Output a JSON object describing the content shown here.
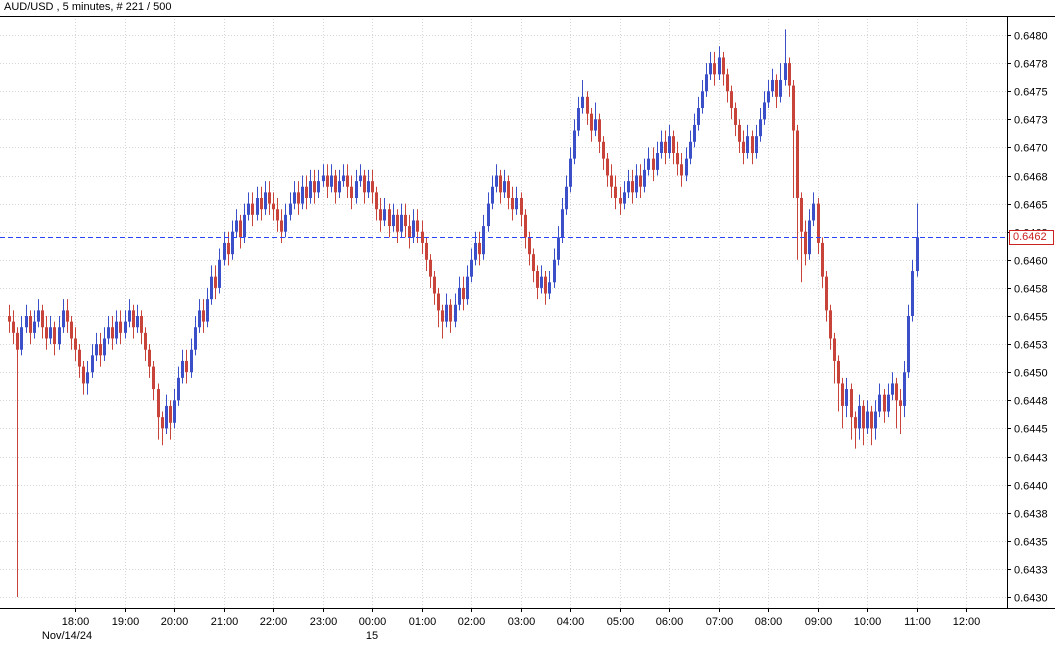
{
  "header": {
    "title": "AUD/USD , 5 minutes, # 221 / 500"
  },
  "chart_data": {
    "type": "candlestick",
    "title": "AUD/USD , 5 minutes, # 221 / 500",
    "symbol": "AUD/USD",
    "timeframe": "5 minutes",
    "bar_counter": "# 221 / 500",
    "ylim": [
      0.643,
      0.648
    ],
    "price_labels": [
      "0.6480",
      "0.6478",
      "0.6475",
      "0.6473",
      "0.6470",
      "0.6468",
      "0.6465",
      "0.6463",
      "0.6460",
      "0.6458",
      "0.6455",
      "0.6453",
      "0.6450",
      "0.6448",
      "0.6445",
      "0.6443",
      "0.6440",
      "0.6438",
      "0.6435",
      "0.6433",
      "0.6430"
    ],
    "time_labels": [
      "18:00",
      "19:00",
      "20:00",
      "21:00",
      "22:00",
      "23:00",
      "00:00",
      "01:00",
      "02:00",
      "03:00",
      "04:00",
      "05:00",
      "06:00",
      "07:00",
      "08:00",
      "09:00",
      "10:00",
      "11:00",
      "12:00"
    ],
    "date_label": "Nov/14/24",
    "midnight_day_label": "15",
    "midnight_under": "00:00",
    "current_price": {
      "value": 0.6462,
      "label": "0.6462"
    },
    "start_time": "16:40",
    "interval_minutes": 5,
    "grid": true,
    "colors": {
      "up": "#3a4fc8",
      "down": "#c8443a",
      "grid": "#d6d6d6",
      "frame": "#000000",
      "current_line": "#2b43ff",
      "tag": "#cc2222",
      "text": "#000000"
    },
    "candles": [
      [
        0.6455,
        0.6456,
        0.64535,
        0.64545
      ],
      [
        0.64545,
        0.64555,
        0.64525,
        0.64535
      ],
      [
        0.64535,
        0.6454,
        0.643,
        0.6452
      ],
      [
        0.6452,
        0.6455,
        0.64515,
        0.6454
      ],
      [
        0.6454,
        0.6456,
        0.64535,
        0.6455
      ],
      [
        0.6455,
        0.64555,
        0.64525,
        0.64535
      ],
      [
        0.64535,
        0.64555,
        0.6453,
        0.64545
      ],
      [
        0.64545,
        0.64565,
        0.6454,
        0.64555
      ],
      [
        0.64555,
        0.6456,
        0.6453,
        0.6454
      ],
      [
        0.6454,
        0.6455,
        0.6452,
        0.6453
      ],
      [
        0.6453,
        0.6455,
        0.64525,
        0.6454
      ],
      [
        0.6454,
        0.64545,
        0.64515,
        0.64525
      ],
      [
        0.64525,
        0.6455,
        0.6452,
        0.6454
      ],
      [
        0.6454,
        0.64565,
        0.64535,
        0.64555
      ],
      [
        0.64555,
        0.64565,
        0.64535,
        0.64545
      ],
      [
        0.64545,
        0.6455,
        0.6452,
        0.6453
      ],
      [
        0.6453,
        0.6454,
        0.6451,
        0.6452
      ],
      [
        0.6452,
        0.64525,
        0.64495,
        0.64505
      ],
      [
        0.64505,
        0.6451,
        0.6448,
        0.6449
      ],
      [
        0.6449,
        0.6451,
        0.6448,
        0.645
      ],
      [
        0.645,
        0.64525,
        0.64495,
        0.64515
      ],
      [
        0.64515,
        0.64535,
        0.6451,
        0.64525
      ],
      [
        0.64525,
        0.64535,
        0.64505,
        0.64515
      ],
      [
        0.64515,
        0.6454,
        0.6451,
        0.6453
      ],
      [
        0.6453,
        0.6455,
        0.64525,
        0.6454
      ],
      [
        0.6454,
        0.6455,
        0.6452,
        0.6453
      ],
      [
        0.6453,
        0.64555,
        0.64525,
        0.64545
      ],
      [
        0.64545,
        0.64555,
        0.64525,
        0.64535
      ],
      [
        0.64535,
        0.64555,
        0.6453,
        0.64545
      ],
      [
        0.64545,
        0.64565,
        0.6454,
        0.64555
      ],
      [
        0.64555,
        0.6456,
        0.6453,
        0.6454
      ],
      [
        0.6454,
        0.6456,
        0.64535,
        0.6455
      ],
      [
        0.6455,
        0.64555,
        0.64525,
        0.64535
      ],
      [
        0.64535,
        0.6454,
        0.6451,
        0.6452
      ],
      [
        0.6452,
        0.64525,
        0.64495,
        0.64505
      ],
      [
        0.64505,
        0.6451,
        0.64475,
        0.64485
      ],
      [
        0.64485,
        0.6449,
        0.6444,
        0.6446
      ],
      [
        0.6446,
        0.64465,
        0.64435,
        0.6445
      ],
      [
        0.6445,
        0.6448,
        0.64445,
        0.6447
      ],
      [
        0.6447,
        0.64475,
        0.6444,
        0.64455
      ],
      [
        0.64455,
        0.64485,
        0.6445,
        0.64475
      ],
      [
        0.64475,
        0.64505,
        0.6447,
        0.64495
      ],
      [
        0.64495,
        0.6452,
        0.6449,
        0.6451
      ],
      [
        0.6451,
        0.6452,
        0.6449,
        0.645
      ],
      [
        0.645,
        0.6453,
        0.64495,
        0.6452
      ],
      [
        0.6452,
        0.6455,
        0.64515,
        0.6454
      ],
      [
        0.6454,
        0.64565,
        0.64535,
        0.64555
      ],
      [
        0.64555,
        0.64565,
        0.64535,
        0.64545
      ],
      [
        0.64545,
        0.64575,
        0.6454,
        0.64565
      ],
      [
        0.64565,
        0.64595,
        0.6456,
        0.64585
      ],
      [
        0.64585,
        0.64595,
        0.64565,
        0.64575
      ],
      [
        0.64575,
        0.6461,
        0.6457,
        0.646
      ],
      [
        0.646,
        0.64625,
        0.64595,
        0.64615
      ],
      [
        0.64615,
        0.64625,
        0.64595,
        0.64605
      ],
      [
        0.64605,
        0.64635,
        0.646,
        0.64625
      ],
      [
        0.64625,
        0.64645,
        0.6462,
        0.64635
      ],
      [
        0.64635,
        0.6464,
        0.6461,
        0.6462
      ],
      [
        0.6462,
        0.6465,
        0.64615,
        0.6464
      ],
      [
        0.6464,
        0.6466,
        0.64635,
        0.6465
      ],
      [
        0.6465,
        0.6466,
        0.6463,
        0.6464
      ],
      [
        0.6464,
        0.64665,
        0.64635,
        0.64655
      ],
      [
        0.64655,
        0.64665,
        0.64635,
        0.64645
      ],
      [
        0.64645,
        0.6467,
        0.6464,
        0.6466
      ],
      [
        0.6466,
        0.6467,
        0.6464,
        0.6465
      ],
      [
        0.6465,
        0.6466,
        0.64635,
        0.64645
      ],
      [
        0.64645,
        0.64655,
        0.64625,
        0.64635
      ],
      [
        0.64635,
        0.64645,
        0.64615,
        0.64625
      ],
      [
        0.64625,
        0.6465,
        0.6462,
        0.6464
      ],
      [
        0.6464,
        0.6466,
        0.64635,
        0.6465
      ],
      [
        0.6465,
        0.6467,
        0.64645,
        0.6466
      ],
      [
        0.6466,
        0.6467,
        0.6464,
        0.6465
      ],
      [
        0.6465,
        0.64675,
        0.64645,
        0.64665
      ],
      [
        0.64665,
        0.64675,
        0.64645,
        0.64655
      ],
      [
        0.64655,
        0.6468,
        0.6465,
        0.6467
      ],
      [
        0.6467,
        0.6468,
        0.6465,
        0.6466
      ],
      [
        0.6466,
        0.6468,
        0.64655,
        0.6467
      ],
      [
        0.6467,
        0.64685,
        0.64665,
        0.64675
      ],
      [
        0.64675,
        0.64685,
        0.64655,
        0.64665
      ],
      [
        0.64665,
        0.64685,
        0.6466,
        0.64675
      ],
      [
        0.64675,
        0.6468,
        0.6465,
        0.6466
      ],
      [
        0.6466,
        0.6468,
        0.64655,
        0.6467
      ],
      [
        0.6467,
        0.64685,
        0.64665,
        0.64675
      ],
      [
        0.64675,
        0.64685,
        0.64655,
        0.64665
      ],
      [
        0.64665,
        0.64675,
        0.64645,
        0.64655
      ],
      [
        0.64655,
        0.6468,
        0.6465,
        0.6467
      ],
      [
        0.6467,
        0.64685,
        0.64665,
        0.64675
      ],
      [
        0.64675,
        0.6468,
        0.6465,
        0.6466
      ],
      [
        0.6466,
        0.6468,
        0.64655,
        0.6467
      ],
      [
        0.6467,
        0.6468,
        0.6465,
        0.6466
      ],
      [
        0.6466,
        0.64665,
        0.64635,
        0.64645
      ],
      [
        0.64645,
        0.64655,
        0.64625,
        0.64635
      ],
      [
        0.64635,
        0.64655,
        0.6463,
        0.64645
      ],
      [
        0.64645,
        0.6465,
        0.6462,
        0.6463
      ],
      [
        0.6463,
        0.6465,
        0.64625,
        0.6464
      ],
      [
        0.6464,
        0.64645,
        0.64615,
        0.64625
      ],
      [
        0.64625,
        0.6465,
        0.6462,
        0.6464
      ],
      [
        0.6464,
        0.6465,
        0.6462,
        0.6463
      ],
      [
        0.6463,
        0.6464,
        0.6461,
        0.6462
      ],
      [
        0.6462,
        0.64645,
        0.64615,
        0.64635
      ],
      [
        0.64635,
        0.64645,
        0.64615,
        0.64625
      ],
      [
        0.64625,
        0.64635,
        0.64605,
        0.64615
      ],
      [
        0.64615,
        0.6462,
        0.6459,
        0.646
      ],
      [
        0.646,
        0.64605,
        0.64575,
        0.64585
      ],
      [
        0.64585,
        0.6459,
        0.6456,
        0.6457
      ],
      [
        0.6457,
        0.64575,
        0.6454,
        0.64555
      ],
      [
        0.64555,
        0.6456,
        0.6453,
        0.64545
      ],
      [
        0.64545,
        0.6457,
        0.6454,
        0.6456
      ],
      [
        0.6456,
        0.64565,
        0.64535,
        0.64545
      ],
      [
        0.64545,
        0.6457,
        0.6454,
        0.6456
      ],
      [
        0.6456,
        0.64585,
        0.64555,
        0.64575
      ],
      [
        0.64575,
        0.64585,
        0.64555,
        0.64565
      ],
      [
        0.64565,
        0.64595,
        0.6456,
        0.64585
      ],
      [
        0.64585,
        0.6461,
        0.6458,
        0.646
      ],
      [
        0.646,
        0.64625,
        0.64595,
        0.64615
      ],
      [
        0.64615,
        0.64625,
        0.64595,
        0.64605
      ],
      [
        0.64605,
        0.6464,
        0.646,
        0.6463
      ],
      [
        0.6463,
        0.6466,
        0.64625,
        0.6465
      ],
      [
        0.6465,
        0.64675,
        0.64645,
        0.64665
      ],
      [
        0.64665,
        0.64685,
        0.6466,
        0.64675
      ],
      [
        0.64675,
        0.6468,
        0.6465,
        0.6466
      ],
      [
        0.6466,
        0.6468,
        0.64655,
        0.6467
      ],
      [
        0.6467,
        0.64675,
        0.64645,
        0.64655
      ],
      [
        0.64655,
        0.64665,
        0.64635,
        0.64645
      ],
      [
        0.64645,
        0.64665,
        0.6464,
        0.64655
      ],
      [
        0.64655,
        0.6466,
        0.6463,
        0.6464
      ],
      [
        0.6464,
        0.64645,
        0.6461,
        0.6462
      ],
      [
        0.6462,
        0.64625,
        0.64595,
        0.64605
      ],
      [
        0.64605,
        0.6461,
        0.6458,
        0.6459
      ],
      [
        0.6459,
        0.64595,
        0.64565,
        0.64575
      ],
      [
        0.64575,
        0.64595,
        0.6457,
        0.64585
      ],
      [
        0.64585,
        0.6459,
        0.6456,
        0.6457
      ],
      [
        0.6457,
        0.6459,
        0.64565,
        0.6458
      ],
      [
        0.6458,
        0.6461,
        0.64575,
        0.646
      ],
      [
        0.646,
        0.6463,
        0.64595,
        0.6462
      ],
      [
        0.6462,
        0.64655,
        0.64615,
        0.64645
      ],
      [
        0.64645,
        0.64675,
        0.6464,
        0.64665
      ],
      [
        0.64665,
        0.647,
        0.6466,
        0.6469
      ],
      [
        0.6469,
        0.64725,
        0.64685,
        0.64715
      ],
      [
        0.64715,
        0.64745,
        0.6471,
        0.64735
      ],
      [
        0.64735,
        0.6476,
        0.6473,
        0.64745
      ],
      [
        0.64745,
        0.6475,
        0.6472,
        0.6473
      ],
      [
        0.6473,
        0.64735,
        0.64705,
        0.64715
      ],
      [
        0.64715,
        0.6474,
        0.6471,
        0.64725
      ],
      [
        0.64725,
        0.6473,
        0.64695,
        0.64705
      ],
      [
        0.64705,
        0.6471,
        0.6468,
        0.6469
      ],
      [
        0.6469,
        0.64695,
        0.64665,
        0.64675
      ],
      [
        0.64675,
        0.64685,
        0.64655,
        0.64665
      ],
      [
        0.64665,
        0.64675,
        0.64645,
        0.64655
      ],
      [
        0.64655,
        0.64665,
        0.6464,
        0.6465
      ],
      [
        0.6465,
        0.6467,
        0.64645,
        0.6466
      ],
      [
        0.6466,
        0.6468,
        0.64655,
        0.6467
      ],
      [
        0.6467,
        0.6468,
        0.6465,
        0.6466
      ],
      [
        0.6466,
        0.64685,
        0.64655,
        0.64675
      ],
      [
        0.64675,
        0.64685,
        0.64655,
        0.64665
      ],
      [
        0.64665,
        0.6469,
        0.6466,
        0.6468
      ],
      [
        0.6468,
        0.647,
        0.64675,
        0.6469
      ],
      [
        0.6469,
        0.647,
        0.6467,
        0.6468
      ],
      [
        0.6468,
        0.64705,
        0.64675,
        0.64695
      ],
      [
        0.64695,
        0.64715,
        0.6469,
        0.64705
      ],
      [
        0.64705,
        0.64715,
        0.64685,
        0.64695
      ],
      [
        0.64695,
        0.6472,
        0.6469,
        0.6471
      ],
      [
        0.6471,
        0.64715,
        0.64685,
        0.64695
      ],
      [
        0.64695,
        0.64705,
        0.64675,
        0.64685
      ],
      [
        0.64685,
        0.64695,
        0.64665,
        0.64675
      ],
      [
        0.64675,
        0.647,
        0.6467,
        0.6469
      ],
      [
        0.6469,
        0.64715,
        0.64685,
        0.64705
      ],
      [
        0.64705,
        0.6473,
        0.647,
        0.6472
      ],
      [
        0.6472,
        0.64745,
        0.64715,
        0.64735
      ],
      [
        0.64735,
        0.6476,
        0.6473,
        0.6475
      ],
      [
        0.6475,
        0.64775,
        0.64745,
        0.64765
      ],
      [
        0.64765,
        0.64785,
        0.6476,
        0.64775
      ],
      [
        0.64775,
        0.64785,
        0.64755,
        0.64765
      ],
      [
        0.64765,
        0.6479,
        0.6476,
        0.6478
      ],
      [
        0.6478,
        0.64785,
        0.64755,
        0.64765
      ],
      [
        0.64765,
        0.6477,
        0.6474,
        0.6475
      ],
      [
        0.6475,
        0.64755,
        0.64725,
        0.64735
      ],
      [
        0.64735,
        0.6474,
        0.6471,
        0.6472
      ],
      [
        0.6472,
        0.64725,
        0.64695,
        0.64705
      ],
      [
        0.64705,
        0.64715,
        0.64685,
        0.64695
      ],
      [
        0.64695,
        0.6472,
        0.6469,
        0.6471
      ],
      [
        0.6471,
        0.64715,
        0.64685,
        0.64695
      ],
      [
        0.64695,
        0.6472,
        0.6469,
        0.6471
      ],
      [
        0.6471,
        0.64735,
        0.64705,
        0.64725
      ],
      [
        0.64725,
        0.6475,
        0.6472,
        0.6474
      ],
      [
        0.6474,
        0.6476,
        0.64735,
        0.6475
      ],
      [
        0.6475,
        0.6477,
        0.64745,
        0.6476
      ],
      [
        0.6476,
        0.64765,
        0.64735,
        0.64745
      ],
      [
        0.64745,
        0.64775,
        0.6474,
        0.6476
      ],
      [
        0.6476,
        0.64805,
        0.64755,
        0.64775
      ],
      [
        0.64775,
        0.6478,
        0.64745,
        0.64755
      ],
      [
        0.64755,
        0.6476,
        0.64655,
        0.64715
      ],
      [
        0.64715,
        0.6472,
        0.646,
        0.64655
      ],
      [
        0.64655,
        0.6466,
        0.6458,
        0.64625
      ],
      [
        0.64625,
        0.64635,
        0.64595,
        0.64605
      ],
      [
        0.64605,
        0.64645,
        0.646,
        0.64635
      ],
      [
        0.64635,
        0.6466,
        0.6463,
        0.6465
      ],
      [
        0.6465,
        0.64655,
        0.64605,
        0.64615
      ],
      [
        0.64615,
        0.6462,
        0.64575,
        0.64585
      ],
      [
        0.64585,
        0.6459,
        0.64545,
        0.64555
      ],
      [
        0.64555,
        0.6456,
        0.6452,
        0.6453
      ],
      [
        0.6453,
        0.64535,
        0.6449,
        0.6451
      ],
      [
        0.6451,
        0.64515,
        0.64465,
        0.6449
      ],
      [
        0.6449,
        0.64495,
        0.6445,
        0.6447
      ],
      [
        0.6447,
        0.64495,
        0.6446,
        0.64485
      ],
      [
        0.64485,
        0.6449,
        0.6444,
        0.6446
      ],
      [
        0.6446,
        0.64465,
        0.64432,
        0.6445
      ],
      [
        0.6445,
        0.6448,
        0.6444,
        0.6447
      ],
      [
        0.6447,
        0.64475,
        0.64435,
        0.6445
      ],
      [
        0.6445,
        0.64475,
        0.64445,
        0.64465
      ],
      [
        0.64465,
        0.6447,
        0.64435,
        0.6445
      ],
      [
        0.6445,
        0.64475,
        0.6444,
        0.64465
      ],
      [
        0.64465,
        0.6449,
        0.6446,
        0.6448
      ],
      [
        0.6448,
        0.64485,
        0.64455,
        0.64465
      ],
      [
        0.64465,
        0.6449,
        0.6446,
        0.6448
      ],
      [
        0.6448,
        0.645,
        0.64475,
        0.6449
      ],
      [
        0.6449,
        0.64495,
        0.6445,
        0.64475
      ],
      [
        0.64475,
        0.64485,
        0.64445,
        0.6447
      ],
      [
        0.6447,
        0.6451,
        0.6446,
        0.645
      ],
      [
        0.645,
        0.6456,
        0.64495,
        0.6455
      ],
      [
        0.6455,
        0.646,
        0.64545,
        0.6459
      ],
      [
        0.6459,
        0.6465,
        0.64585,
        0.6462
      ]
    ]
  }
}
